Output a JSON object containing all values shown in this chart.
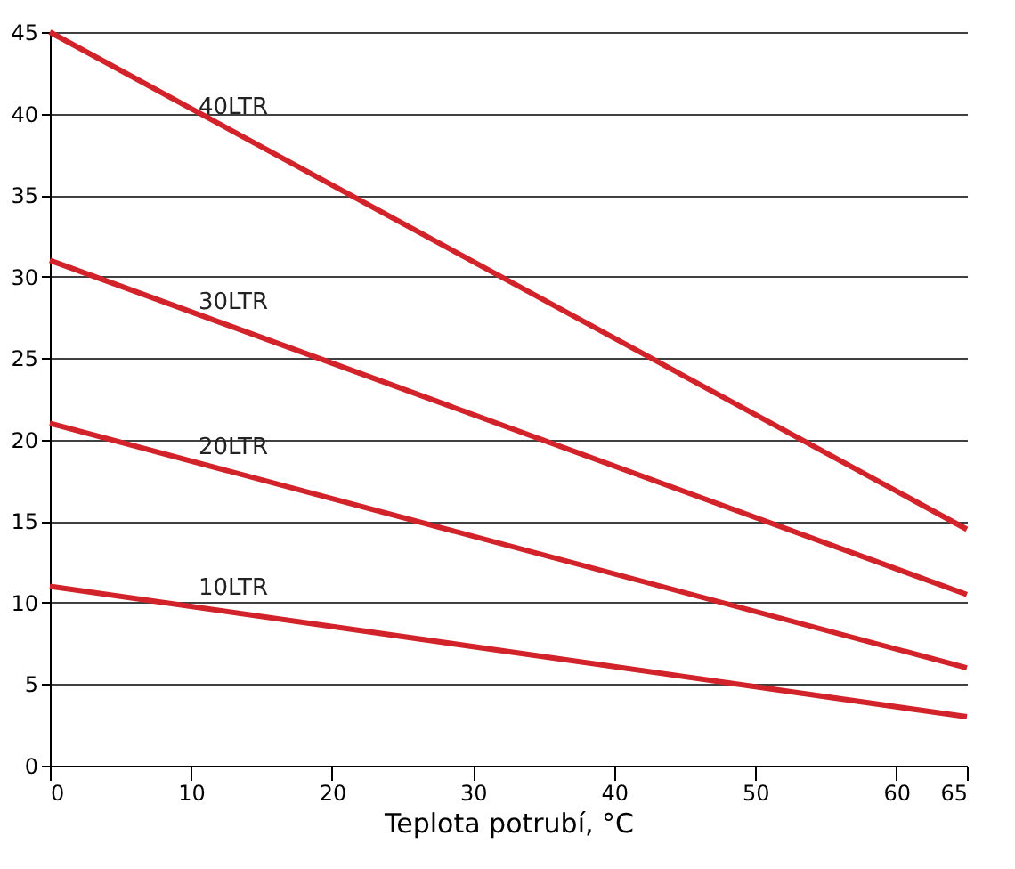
{
  "chart_data": {
    "type": "line",
    "xlabel": "Teplota potrubí, °C",
    "x": [
      0,
      65
    ],
    "series": [
      {
        "name": "40LTR",
        "color": "#d2232a",
        "values": [
          45,
          14.5
        ]
      },
      {
        "name": "30LTR",
        "color": "#d2232a",
        "values": [
          31,
          10.5
        ]
      },
      {
        "name": "20LTR",
        "color": "#d2232a",
        "values": [
          21,
          6
        ]
      },
      {
        "name": "10LTR",
        "color": "#d2232a",
        "values": [
          11,
          3
        ]
      }
    ],
    "xlim": [
      0,
      65
    ],
    "xticks": [
      0,
      10,
      20,
      30,
      40,
      50,
      60,
      65
    ],
    "ylim": [
      0,
      45
    ],
    "yticks": [
      0,
      5,
      10,
      15,
      20,
      25,
      30,
      35,
      40,
      45
    ],
    "grid": "y",
    "legend": false,
    "marker": "none",
    "line_style": "solid"
  }
}
